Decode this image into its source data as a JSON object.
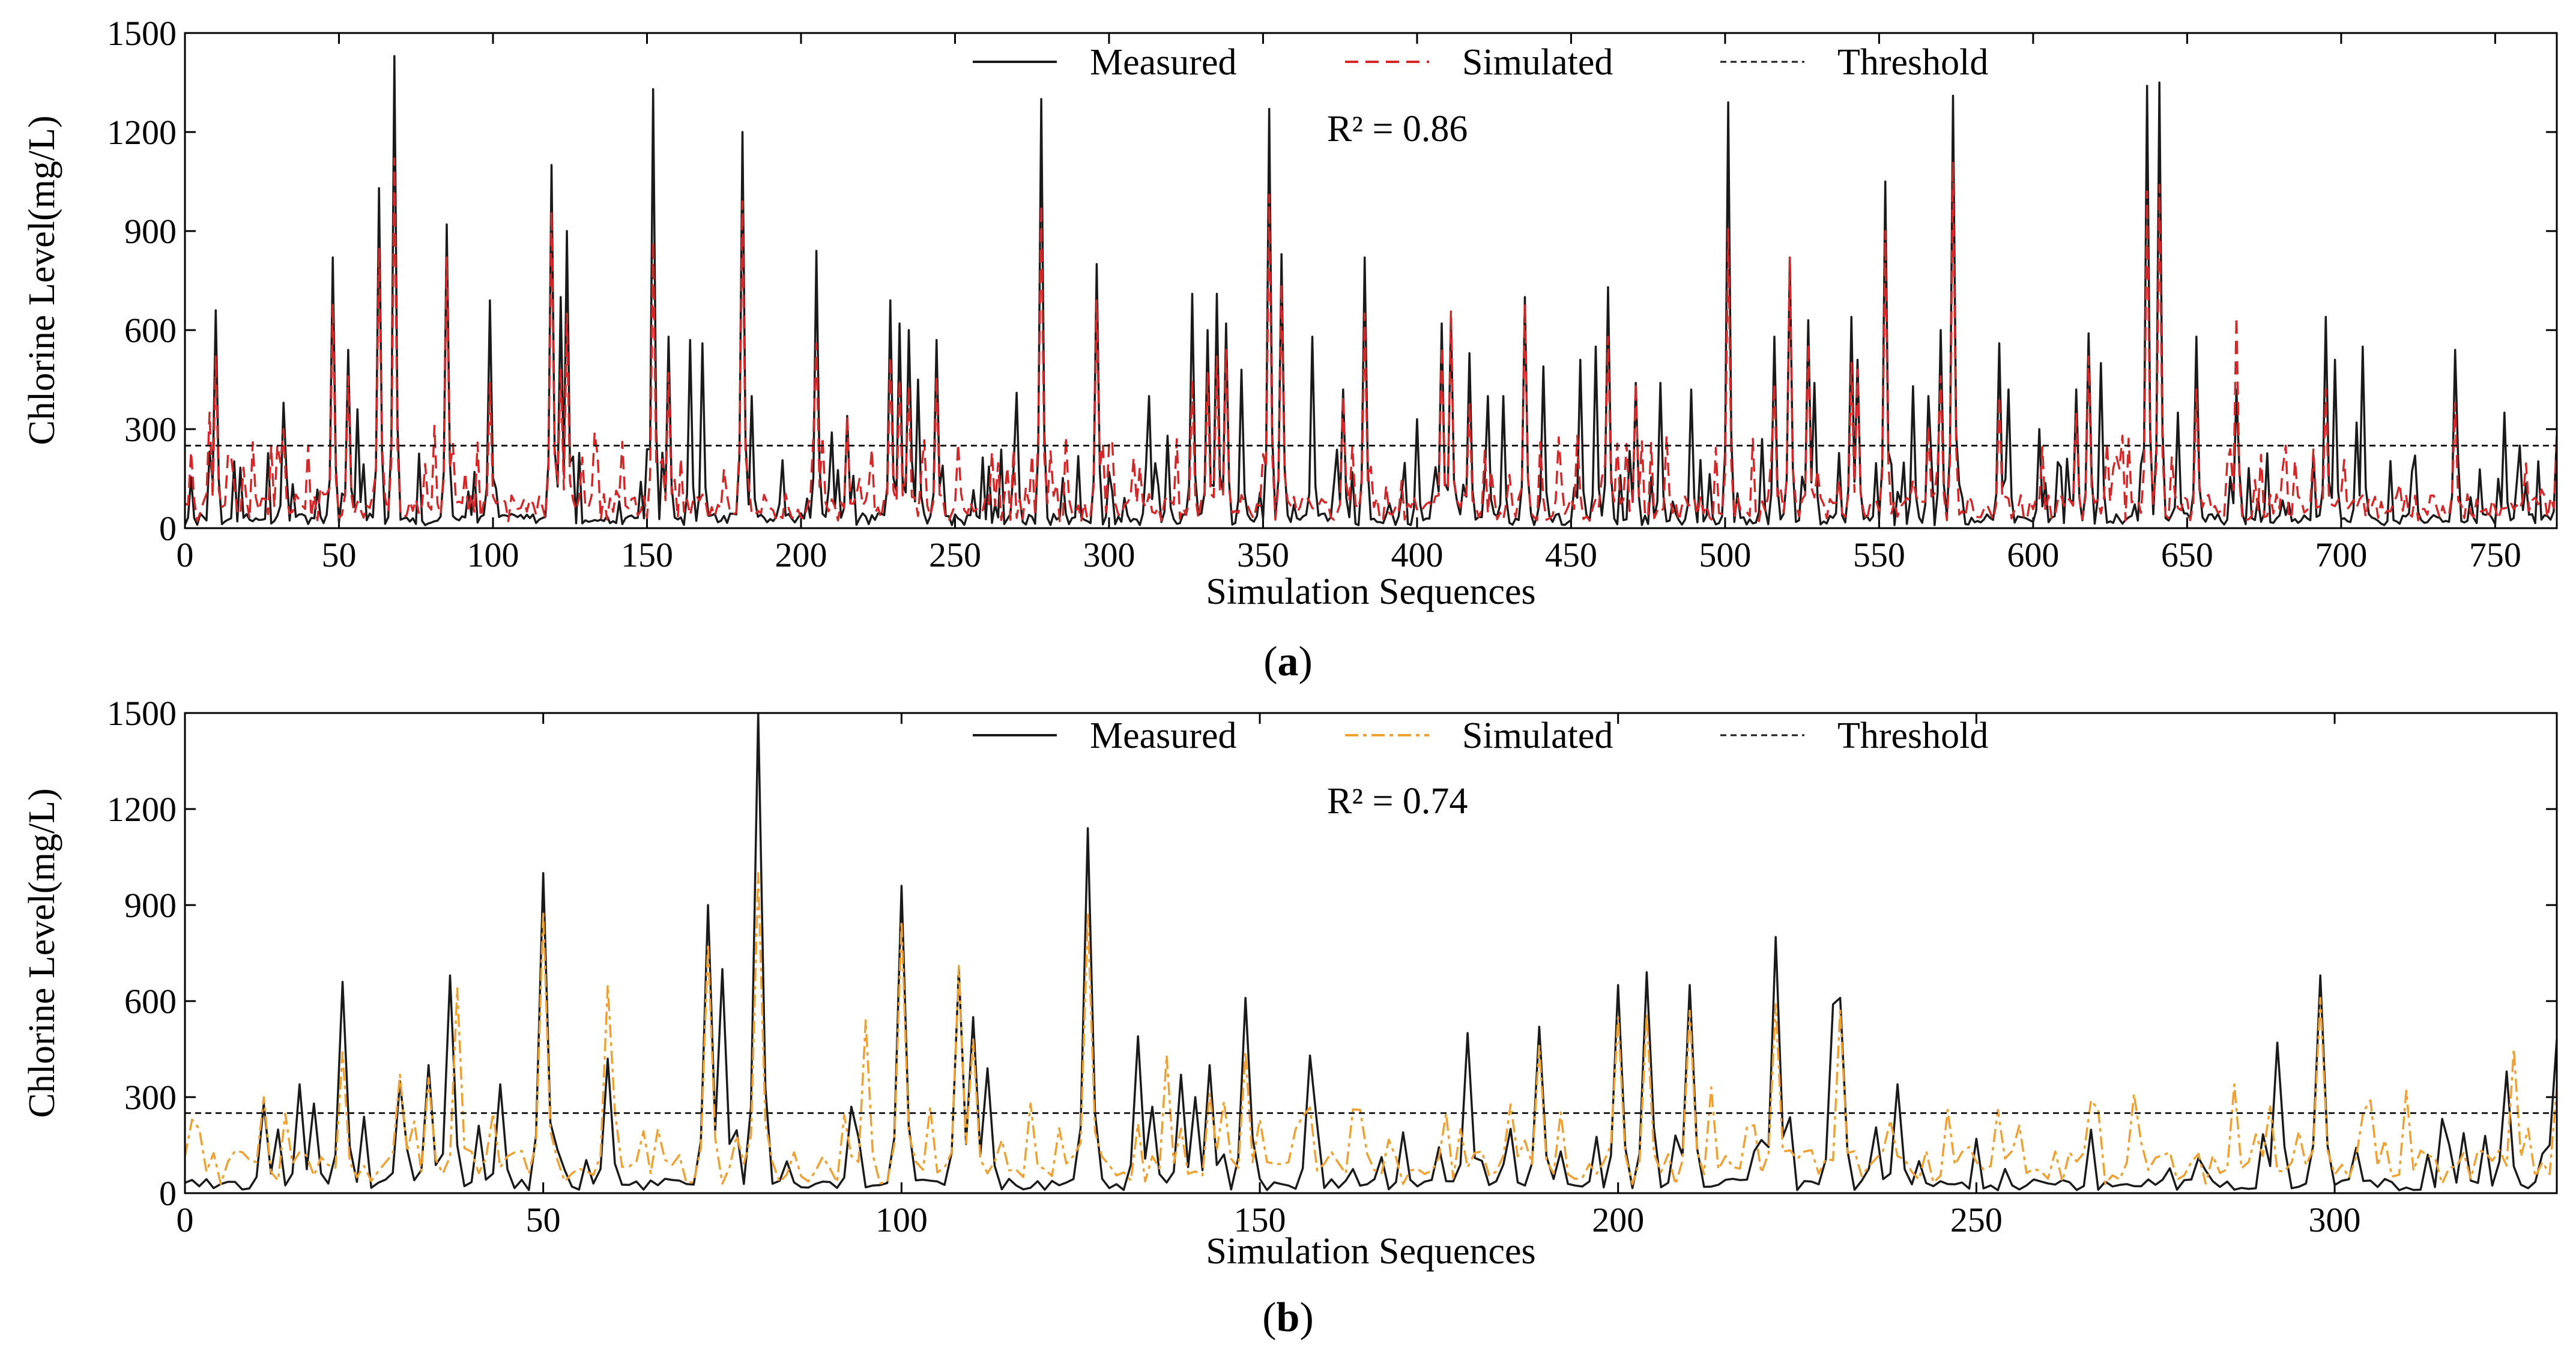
{
  "colors": {
    "measured": "#1a1a1a",
    "threshold": "#1a1a1a",
    "sim_a": "#d62728",
    "sim_b": "#f0a030"
  },
  "chart_data": [
    {
      "type": "line",
      "panel": "(a)",
      "panel_letter": "a",
      "xlabel": "Simulation Sequences",
      "ylabel": "Chlorine Level(mg/L)",
      "xlim": [
        0,
        770
      ],
      "ylim": [
        0,
        1500
      ],
      "xticks": [
        0,
        50,
        100,
        150,
        200,
        250,
        300,
        350,
        400,
        450,
        500,
        550,
        600,
        650,
        700,
        750
      ],
      "yticks": [
        0,
        300,
        600,
        900,
        1200,
        1500
      ],
      "threshold": 250,
      "r2_label": "R² = 0.86",
      "legend": [
        "Measured",
        "Simulated",
        "Threshold"
      ],
      "legend_position": "top-center",
      "series": [
        {
          "name": "Measured",
          "color": "#1a1a1a",
          "dash": "",
          "n_points": 771,
          "peaks": [
            [
              10,
              660
            ],
            [
              32,
              380
            ],
            [
              48,
              820
            ],
            [
              53,
              540
            ],
            [
              56,
              360
            ],
            [
              63,
              1030
            ],
            [
              68,
              1430
            ],
            [
              85,
              920
            ],
            [
              99,
              690
            ],
            [
              119,
              1100
            ],
            [
              122,
              700
            ],
            [
              124,
              900
            ],
            [
              152,
              1330
            ],
            [
              157,
              580
            ],
            [
              164,
              570
            ],
            [
              168,
              560
            ],
            [
              181,
              1200
            ],
            [
              184,
              400
            ],
            [
              205,
              840
            ],
            [
              210,
              290
            ],
            [
              215,
              340
            ],
            [
              229,
              690
            ],
            [
              232,
              620
            ],
            [
              235,
              600
            ],
            [
              238,
              450
            ],
            [
              244,
              570
            ],
            [
              270,
              410
            ],
            [
              278,
              1300
            ],
            [
              296,
              800
            ],
            [
              300,
              170
            ],
            [
              313,
              400
            ],
            [
              319,
              280
            ],
            [
              327,
              710
            ],
            [
              332,
              600
            ],
            [
              335,
              710
            ],
            [
              338,
              620
            ],
            [
              343,
              480
            ],
            [
              352,
              1270
            ],
            [
              356,
              830
            ],
            [
              366,
              580
            ],
            [
              376,
              420
            ],
            [
              383,
              820
            ],
            [
              400,
              330
            ],
            [
              408,
              620
            ],
            [
              411,
              640
            ],
            [
              417,
              530
            ],
            [
              423,
              400
            ],
            [
              428,
              400
            ],
            [
              435,
              700
            ],
            [
              441,
              490
            ],
            [
              453,
              510
            ],
            [
              458,
              550
            ],
            [
              462,
              730
            ],
            [
              471,
              440
            ],
            [
              479,
              440
            ],
            [
              489,
              420
            ],
            [
              501,
              1290
            ],
            [
              512,
              270
            ],
            [
              516,
              580
            ],
            [
              521,
              820
            ],
            [
              527,
              630
            ],
            [
              529,
              440
            ],
            [
              541,
              640
            ],
            [
              543,
              510
            ],
            [
              552,
              1050
            ],
            [
              561,
              430
            ],
            [
              566,
              400
            ],
            [
              570,
              600
            ],
            [
              574,
              1310
            ],
            [
              589,
              560
            ],
            [
              592,
              420
            ],
            [
              602,
              300
            ],
            [
              608,
              200
            ],
            [
              614,
              420
            ],
            [
              618,
              590
            ],
            [
              622,
              500
            ],
            [
              637,
              1340
            ],
            [
              641,
              1350
            ],
            [
              647,
              350
            ],
            [
              653,
              580
            ],
            [
              666,
              420
            ],
            [
              695,
              640
            ],
            [
              698,
              510
            ],
            [
              705,
              320
            ],
            [
              707,
              550
            ],
            [
              724,
              220
            ],
            [
              737,
              540
            ],
            [
              753,
              350
            ],
            [
              758,
              250
            ],
            [
              770,
              280
            ]
          ],
          "baseline": 30
        },
        {
          "name": "Simulated",
          "color": "#d62728",
          "dash": "22,12",
          "n_points": 771,
          "peaks": [
            [
              8,
              350
            ],
            [
              10,
              520
            ],
            [
              32,
              300
            ],
            [
              48,
              680
            ],
            [
              53,
              460
            ],
            [
              63,
              850
            ],
            [
              68,
              1120
            ],
            [
              81,
              310
            ],
            [
              85,
              820
            ],
            [
              99,
              440
            ],
            [
              119,
              960
            ],
            [
              122,
              480
            ],
            [
              124,
              650
            ],
            [
              133,
              290
            ],
            [
              152,
              870
            ],
            [
              157,
              470
            ],
            [
              181,
              990
            ],
            [
              205,
              560
            ],
            [
              215,
              340
            ],
            [
              229,
              520
            ],
            [
              232,
              450
            ],
            [
              235,
              430
            ],
            [
              244,
              460
            ],
            [
              278,
              980
            ],
            [
              296,
              690
            ],
            [
              327,
              450
            ],
            [
              332,
              470
            ],
            [
              335,
              520
            ],
            [
              338,
              540
            ],
            [
              352,
              1010
            ],
            [
              356,
              740
            ],
            [
              376,
              400
            ],
            [
              383,
              650
            ],
            [
              408,
              550
            ],
            [
              411,
              660
            ],
            [
              417,
              380
            ],
            [
              435,
              680
            ],
            [
              462,
              580
            ],
            [
              471,
              440
            ],
            [
              501,
              910
            ],
            [
              516,
              440
            ],
            [
              521,
              820
            ],
            [
              527,
              560
            ],
            [
              541,
              500
            ],
            [
              543,
              480
            ],
            [
              552,
              900
            ],
            [
              566,
              310
            ],
            [
              570,
              460
            ],
            [
              574,
              1110
            ],
            [
              589,
              400
            ],
            [
              614,
              350
            ],
            [
              618,
              520
            ],
            [
              637,
              1020
            ],
            [
              641,
              1040
            ],
            [
              653,
              420
            ],
            [
              666,
              640
            ],
            [
              695,
              420
            ],
            [
              737,
              380
            ],
            [
              770,
              260
            ]
          ],
          "baseline": 70
        }
      ]
    },
    {
      "type": "line",
      "panel": "(b)",
      "panel_letter": "b",
      "xlabel": "Simulation Sequences",
      "ylabel": "Chlorine Level(mg/L)",
      "xlim": [
        0,
        331
      ],
      "ylim": [
        0,
        1500
      ],
      "xticks": [
        0,
        50,
        100,
        150,
        200,
        250,
        300
      ],
      "yticks": [
        0,
        300,
        600,
        900,
        1200,
        1500
      ],
      "threshold": 250,
      "r2_label": "R² = 0.74",
      "legend": [
        "Measured",
        "Simulated",
        "Threshold"
      ],
      "legend_position": "top-center",
      "series": [
        {
          "name": "Measured",
          "color": "#1a1a1a",
          "dash": "",
          "n_points": 332,
          "peaks": [
            [
              11,
              280
            ],
            [
              16,
              340
            ],
            [
              18,
              280
            ],
            [
              22,
              660
            ],
            [
              30,
              350
            ],
            [
              34,
              400
            ],
            [
              37,
              680
            ],
            [
              44,
              340
            ],
            [
              50,
              1000
            ],
            [
              59,
              420
            ],
            [
              73,
              900
            ],
            [
              75,
              700
            ],
            [
              80,
              1500
            ],
            [
              93,
              270
            ],
            [
              100,
              960
            ],
            [
              108,
              700
            ],
            [
              110,
              550
            ],
            [
              112,
              390
            ],
            [
              126,
              1140
            ],
            [
              133,
              490
            ],
            [
              135,
              270
            ],
            [
              139,
              370
            ],
            [
              141,
              300
            ],
            [
              143,
              400
            ],
            [
              148,
              610
            ],
            [
              157,
              430
            ],
            [
              170,
              190
            ],
            [
              179,
              500
            ],
            [
              189,
              520
            ],
            [
              200,
              650
            ],
            [
              204,
              690
            ],
            [
              208,
              180
            ],
            [
              210,
              650
            ],
            [
              222,
              800
            ],
            [
              230,
              590
            ],
            [
              231,
              610
            ],
            [
              239,
              340
            ],
            [
              242,
              100
            ],
            [
              292,
              470
            ],
            [
              298,
              680
            ],
            [
              316,
              150
            ],
            [
              324,
              380
            ],
            [
              330,
              150
            ],
            [
              331,
              480
            ]
          ],
          "baseline": 30
        },
        {
          "name": "Simulated",
          "color": "#f0a030",
          "dash": "22,8,6,8",
          "n_points": 332,
          "peaks": [
            [
              2,
              200
            ],
            [
              11,
              300
            ],
            [
              22,
              440
            ],
            [
              30,
              370
            ],
            [
              34,
              360
            ],
            [
              38,
              640
            ],
            [
              50,
              880
            ],
            [
              59,
              650
            ],
            [
              66,
              200
            ],
            [
              73,
              780
            ],
            [
              80,
              1000
            ],
            [
              95,
              540
            ],
            [
              100,
              850
            ],
            [
              108,
              710
            ],
            [
              110,
              480
            ],
            [
              118,
              280
            ],
            [
              126,
              870
            ],
            [
              137,
              430
            ],
            [
              143,
              310
            ],
            [
              148,
              440
            ],
            [
              150,
              230
            ],
            [
              155,
              200
            ],
            [
              164,
              260
            ],
            [
              178,
              200
            ],
            [
              189,
              460
            ],
            [
              200,
              550
            ],
            [
              204,
              560
            ],
            [
              210,
              570
            ],
            [
              213,
              330
            ],
            [
              222,
              590
            ],
            [
              231,
              570
            ],
            [
              246,
              260
            ],
            [
              253,
              260
            ],
            [
              266,
              290
            ],
            [
              272,
              310
            ],
            [
              286,
              340
            ],
            [
              298,
              610
            ],
            [
              305,
              290
            ],
            [
              310,
              320
            ],
            [
              325,
              450
            ],
            [
              331,
              330
            ]
          ],
          "baseline": 90
        }
      ]
    }
  ]
}
